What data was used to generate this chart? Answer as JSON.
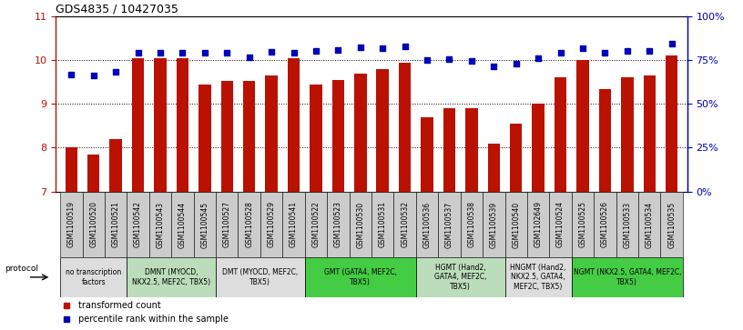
{
  "title": "GDS4835 / 10427035",
  "samples": [
    "GSM1100519",
    "GSM1100520",
    "GSM1100521",
    "GSM1100542",
    "GSM1100543",
    "GSM1100544",
    "GSM1100545",
    "GSM1100527",
    "GSM1100528",
    "GSM1100529",
    "GSM1100541",
    "GSM1100522",
    "GSM1100523",
    "GSM1100530",
    "GSM1100531",
    "GSM1100532",
    "GSM1100536",
    "GSM1100537",
    "GSM1100538",
    "GSM1100539",
    "GSM1100540",
    "GSM1102649",
    "GSM1100524",
    "GSM1100525",
    "GSM1100526",
    "GSM1100533",
    "GSM1100534",
    "GSM1100535"
  ],
  "bar_values": [
    8.0,
    7.85,
    8.2,
    10.05,
    10.05,
    10.05,
    9.45,
    9.52,
    9.52,
    9.65,
    10.05,
    9.45,
    9.55,
    9.7,
    9.8,
    9.95,
    8.7,
    8.9,
    8.9,
    8.1,
    8.55,
    9.0,
    9.6,
    10.0,
    9.35,
    9.6,
    9.65,
    10.1
  ],
  "dot_values": [
    9.68,
    9.65,
    9.73,
    10.18,
    10.18,
    10.18,
    10.18,
    10.18,
    10.07,
    10.2,
    10.18,
    10.22,
    10.24,
    10.3,
    10.28,
    10.32,
    10.0,
    10.02,
    9.98,
    9.87,
    9.92,
    10.05,
    10.18,
    10.28,
    10.18,
    10.22,
    10.22,
    10.38
  ],
  "bar_color": "#bb1100",
  "dot_color": "#0000bb",
  "ylim_left": [
    7,
    11
  ],
  "ylim_right": [
    0,
    100
  ],
  "yticks_left": [
    7,
    8,
    9,
    10,
    11
  ],
  "yticks_right": [
    0,
    25,
    50,
    75,
    100
  ],
  "groups": [
    {
      "label": "no transcription\nfactors",
      "start": 0,
      "end": 3,
      "color": "#dddddd"
    },
    {
      "label": "DMNT (MYOCD,\nNKX2.5, MEF2C, TBX5)",
      "start": 3,
      "end": 7,
      "color": "#bbddbb"
    },
    {
      "label": "DMT (MYOCD, MEF2C,\nTBX5)",
      "start": 7,
      "end": 11,
      "color": "#dddddd"
    },
    {
      "label": "GMT (GATA4, MEF2C,\nTBX5)",
      "start": 11,
      "end": 16,
      "color": "#44cc44"
    },
    {
      "label": "HGMT (Hand2,\nGATA4, MEF2C,\nTBX5)",
      "start": 16,
      "end": 20,
      "color": "#bbddbb"
    },
    {
      "label": "HNGMT (Hand2,\nNKX2.5, GATA4,\nMEF2C, TBX5)",
      "start": 20,
      "end": 23,
      "color": "#dddddd"
    },
    {
      "label": "NGMT (NKX2.5, GATA4, MEF2C,\nTBX5)",
      "start": 23,
      "end": 28,
      "color": "#44cc44"
    }
  ],
  "protocol_label": "protocol",
  "legend_bar": "transformed count",
  "legend_dot": "percentile rank within the sample",
  "bg_color": "#ffffff",
  "cell_bg": "#cccccc"
}
